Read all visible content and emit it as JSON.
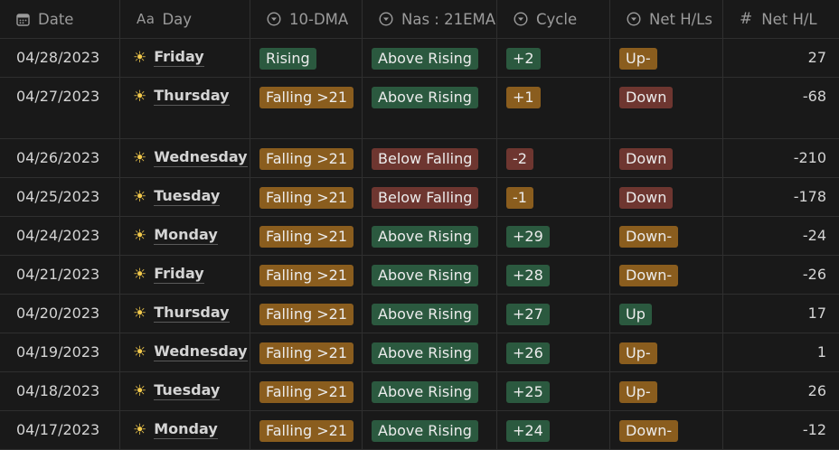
{
  "columns": {
    "date": "Date",
    "day": "Day",
    "dma": "10-DMA",
    "nas": "Nas : 21EMA",
    "cycle": "Cycle",
    "net_hls": "Net H/Ls",
    "net_hl": "Net H/L"
  },
  "icons": {
    "date": "calendar-icon",
    "day": "text-aa-icon",
    "select": "select-chevron-icon",
    "number": "hash-icon",
    "weather": "sun-icon"
  },
  "colors": {
    "orange": "#8a5d1e",
    "green": "#2b593f",
    "red": "#6e3630"
  },
  "rows": [
    {
      "date": "04/28/2023",
      "day": "Friday",
      "dma": "Rising",
      "dma_color": "green",
      "nas": "Above Rising",
      "nas_color": "green",
      "cycle": "+2",
      "cycle_color": "green",
      "net_hls": "Up-",
      "net_hls_color": "orange",
      "net_hl": "27"
    },
    {
      "date": "04/27/2023",
      "day": "Thursday",
      "dma": "Falling >21",
      "dma_color": "orange",
      "nas": "Above Rising",
      "nas_color": "green",
      "cycle": "+1",
      "cycle_color": "orange",
      "net_hls": "Down",
      "net_hls_color": "red",
      "net_hl": "-68"
    },
    {
      "date": "04/26/2023",
      "day": "Wednesday",
      "dma": "Falling >21",
      "dma_color": "orange",
      "nas": "Below Falling",
      "nas_color": "red",
      "cycle": "-2",
      "cycle_color": "red",
      "net_hls": "Down",
      "net_hls_color": "red",
      "net_hl": "-210"
    },
    {
      "date": "04/25/2023",
      "day": "Tuesday",
      "dma": "Falling >21",
      "dma_color": "orange",
      "nas": "Below Falling",
      "nas_color": "red",
      "cycle": "-1",
      "cycle_color": "orange",
      "net_hls": "Down",
      "net_hls_color": "red",
      "net_hl": "-178"
    },
    {
      "date": "04/24/2023",
      "day": "Monday",
      "dma": "Falling >21",
      "dma_color": "orange",
      "nas": "Above Rising",
      "nas_color": "green",
      "cycle": "+29",
      "cycle_color": "green",
      "net_hls": "Down-",
      "net_hls_color": "orange",
      "net_hl": "-24"
    },
    {
      "date": "04/21/2023",
      "day": "Friday",
      "dma": "Falling >21",
      "dma_color": "orange",
      "nas": "Above Rising",
      "nas_color": "green",
      "cycle": "+28",
      "cycle_color": "green",
      "net_hls": "Down-",
      "net_hls_color": "orange",
      "net_hl": "-26"
    },
    {
      "date": "04/20/2023",
      "day": "Thursday",
      "dma": "Falling >21",
      "dma_color": "orange",
      "nas": "Above Rising",
      "nas_color": "green",
      "cycle": "+27",
      "cycle_color": "green",
      "net_hls": "Up",
      "net_hls_color": "green",
      "net_hl": "17"
    },
    {
      "date": "04/19/2023",
      "day": "Wednesday",
      "dma": "Falling >21",
      "dma_color": "orange",
      "nas": "Above Rising",
      "nas_color": "green",
      "cycle": "+26",
      "cycle_color": "green",
      "net_hls": "Up-",
      "net_hls_color": "orange",
      "net_hl": "1"
    },
    {
      "date": "04/18/2023",
      "day": "Tuesday",
      "dma": "Falling >21",
      "dma_color": "orange",
      "nas": "Above Rising",
      "nas_color": "green",
      "cycle": "+25",
      "cycle_color": "green",
      "net_hls": "Up-",
      "net_hls_color": "orange",
      "net_hl": "26"
    },
    {
      "date": "04/17/2023",
      "day": "Monday",
      "dma": "Falling >21",
      "dma_color": "orange",
      "nas": "Above Rising",
      "nas_color": "green",
      "cycle": "+24",
      "cycle_color": "green",
      "net_hls": "Down-",
      "net_hls_color": "orange",
      "net_hl": "-12"
    }
  ]
}
